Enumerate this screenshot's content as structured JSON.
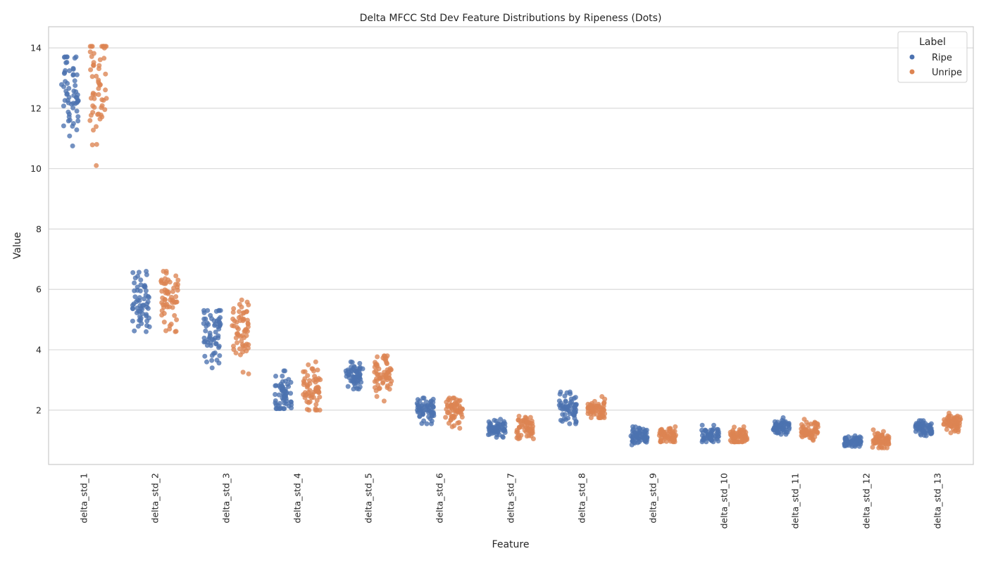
{
  "chart_data": {
    "type": "scatter",
    "subtype": "strip",
    "title": "Delta MFCC Std Dev Feature Distributions by Ripeness (Dots)",
    "xlabel": "Feature",
    "ylabel": "Value",
    "ylim": [
      0.2,
      14.7
    ],
    "yticks": [
      2,
      4,
      6,
      8,
      10,
      12,
      14
    ],
    "grid": "horizontal",
    "legend": {
      "title": "Label",
      "placement": "top-right"
    },
    "categories": [
      "delta_std_1",
      "delta_std_2",
      "delta_std_3",
      "delta_std_4",
      "delta_std_5",
      "delta_std_6",
      "delta_std_7",
      "delta_std_8",
      "delta_std_9",
      "delta_std_10",
      "delta_std_11",
      "delta_std_12",
      "delta_std_13"
    ],
    "series": [
      {
        "name": "Ripe",
        "color": "#4c72b0",
        "distributions": [
          {
            "min": 10.75,
            "max": 13.7,
            "center": 12.5
          },
          {
            "min": 4.6,
            "max": 6.6,
            "center": 5.6
          },
          {
            "min": 3.4,
            "max": 5.3,
            "center": 4.6
          },
          {
            "min": 2.05,
            "max": 3.3,
            "center": 2.5
          },
          {
            "min": 2.7,
            "max": 3.6,
            "center": 3.15
          },
          {
            "min": 1.55,
            "max": 2.4,
            "center": 2.05
          },
          {
            "min": 1.1,
            "max": 1.7,
            "center": 1.4
          },
          {
            "min": 1.55,
            "max": 2.6,
            "center": 2.05
          },
          {
            "min": 0.85,
            "max": 1.45,
            "center": 1.1
          },
          {
            "min": 0.95,
            "max": 1.5,
            "center": 1.15
          },
          {
            "min": 1.2,
            "max": 1.75,
            "center": 1.45
          },
          {
            "min": 0.8,
            "max": 1.15,
            "center": 0.95
          },
          {
            "min": 1.15,
            "max": 1.65,
            "center": 1.4
          }
        ]
      },
      {
        "name": "Unripe",
        "color": "#dd8452",
        "distributions": [
          {
            "min": 10.1,
            "max": 14.05,
            "center": 12.9
          },
          {
            "min": 4.6,
            "max": 6.6,
            "center": 5.8
          },
          {
            "min": 3.2,
            "max": 5.65,
            "center": 4.7
          },
          {
            "min": 2.0,
            "max": 3.6,
            "center": 2.7
          },
          {
            "min": 2.3,
            "max": 3.8,
            "center": 3.2
          },
          {
            "min": 1.4,
            "max": 2.4,
            "center": 2.05
          },
          {
            "min": 1.05,
            "max": 1.8,
            "center": 1.4
          },
          {
            "min": 1.75,
            "max": 2.45,
            "center": 2.05
          },
          {
            "min": 0.95,
            "max": 1.45,
            "center": 1.15
          },
          {
            "min": 0.95,
            "max": 1.45,
            "center": 1.15
          },
          {
            "min": 1.0,
            "max": 1.7,
            "center": 1.35
          },
          {
            "min": 0.75,
            "max": 1.35,
            "center": 1.0
          },
          {
            "min": 1.25,
            "max": 1.9,
            "center": 1.55
          }
        ]
      }
    ]
  }
}
